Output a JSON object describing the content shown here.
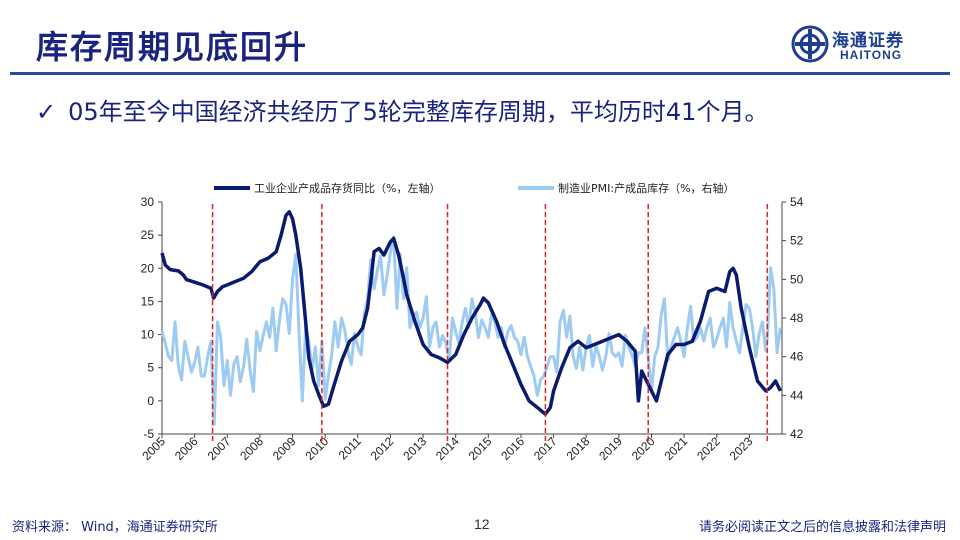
{
  "header": {
    "title": "库存周期见底回升",
    "logo_cn": "海通证券",
    "logo_en": "HAITONG"
  },
  "bullet": {
    "text": "05年至今中国经济共经历了5轮完整库存周期，平均历时41个月。"
  },
  "footer": {
    "source": "资料来源： Wind，海通证券研究所",
    "page": "12",
    "disclaimer": "请务必阅读正文之后的信息披露和法律声明"
  },
  "colors": {
    "title": "#1a237e",
    "series_left": "#0a1a6e",
    "series_right": "#9ecbf2",
    "cycle_lines": "#e02020"
  },
  "chart_data": {
    "type": "line",
    "legend": [
      "工业企业产成品存货同比（%，左轴）",
      "制造业PMI:产成品库存（%，右轴）"
    ],
    "legend_position": "top",
    "x_ticks": [
      "2005",
      "2006",
      "2007",
      "2008",
      "2009",
      "2010",
      "2011",
      "2012",
      "2013",
      "2014",
      "2015",
      "2016",
      "2017",
      "2018",
      "2019",
      "2020",
      "2021",
      "2022",
      "2023"
    ],
    "ylim_left": [
      -5,
      30
    ],
    "yticks_left": [
      -5,
      0,
      5,
      10,
      15,
      20,
      25,
      30
    ],
    "ylim_right": [
      42,
      54
    ],
    "yticks_right": [
      42,
      44,
      46,
      48,
      50,
      52,
      54
    ],
    "cycle_marks": [
      2006.55,
      2009.9,
      2013.75,
      2016.75,
      2019.9,
      2023.55
    ],
    "series": [
      {
        "name": "工业企业产成品存货同比（%，左轴）",
        "axis": "left",
        "points": [
          [
            2005.0,
            22.3
          ],
          [
            2005.1,
            20.5
          ],
          [
            2005.25,
            19.8
          ],
          [
            2005.5,
            19.6
          ],
          [
            2005.65,
            19.0
          ],
          [
            2005.75,
            18.3
          ],
          [
            2006.0,
            17.9
          ],
          [
            2006.25,
            17.5
          ],
          [
            2006.5,
            17.0
          ],
          [
            2006.58,
            15.5
          ],
          [
            2006.7,
            16.5
          ],
          [
            2006.85,
            17.2
          ],
          [
            2007.0,
            17.5
          ],
          [
            2007.25,
            18.0
          ],
          [
            2007.5,
            18.5
          ],
          [
            2007.75,
            19.5
          ],
          [
            2008.0,
            21.0
          ],
          [
            2008.25,
            21.5
          ],
          [
            2008.5,
            22.5
          ],
          [
            2008.65,
            25.0
          ],
          [
            2008.8,
            28.0
          ],
          [
            2008.9,
            28.5
          ],
          [
            2009.0,
            27.5
          ],
          [
            2009.1,
            25.0
          ],
          [
            2009.25,
            20.0
          ],
          [
            2009.4,
            12.0
          ],
          [
            2009.5,
            6.5
          ],
          [
            2009.65,
            3.0
          ],
          [
            2009.8,
            1.0
          ],
          [
            2009.95,
            -0.8
          ],
          [
            2010.1,
            -0.5
          ],
          [
            2010.25,
            2.0
          ],
          [
            2010.5,
            6.0
          ],
          [
            2010.75,
            9.0
          ],
          [
            2011.0,
            10.0
          ],
          [
            2011.15,
            11.0
          ],
          [
            2011.3,
            14.0
          ],
          [
            2011.4,
            18.0
          ],
          [
            2011.5,
            22.5
          ],
          [
            2011.65,
            23.0
          ],
          [
            2011.8,
            22.0
          ],
          [
            2012.0,
            24.0
          ],
          [
            2012.1,
            24.5
          ],
          [
            2012.25,
            22.0
          ],
          [
            2012.4,
            18.5
          ],
          [
            2012.5,
            16.0
          ],
          [
            2012.75,
            12.0
          ],
          [
            2013.0,
            8.5
          ],
          [
            2013.25,
            7.0
          ],
          [
            2013.5,
            6.5
          ],
          [
            2013.75,
            5.8
          ],
          [
            2014.0,
            7.0
          ],
          [
            2014.25,
            10.0
          ],
          [
            2014.5,
            12.5
          ],
          [
            2014.75,
            14.5
          ],
          [
            2014.85,
            15.5
          ],
          [
            2015.0,
            14.8
          ],
          [
            2015.25,
            12.0
          ],
          [
            2015.5,
            8.5
          ],
          [
            2015.75,
            5.5
          ],
          [
            2016.0,
            2.5
          ],
          [
            2016.25,
            0.0
          ],
          [
            2016.5,
            -1.0
          ],
          [
            2016.75,
            -2.0
          ],
          [
            2016.9,
            -1.0
          ],
          [
            2017.0,
            1.5
          ],
          [
            2017.25,
            5.0
          ],
          [
            2017.5,
            8.0
          ],
          [
            2017.75,
            9.0
          ],
          [
            2018.0,
            8.0
          ],
          [
            2018.25,
            8.5
          ],
          [
            2018.5,
            9.0
          ],
          [
            2018.75,
            9.5
          ],
          [
            2019.0,
            10.0
          ],
          [
            2019.25,
            9.0
          ],
          [
            2019.5,
            7.5
          ],
          [
            2019.6,
            0.0
          ],
          [
            2019.7,
            4.5
          ],
          [
            2019.85,
            3.0
          ],
          [
            2020.0,
            1.5
          ],
          [
            2020.15,
            0.0
          ],
          [
            2020.3,
            3.0
          ],
          [
            2020.5,
            7.0
          ],
          [
            2020.75,
            8.5
          ],
          [
            2021.0,
            8.5
          ],
          [
            2021.25,
            9.0
          ],
          [
            2021.5,
            12.0
          ],
          [
            2021.75,
            16.5
          ],
          [
            2022.0,
            17.0
          ],
          [
            2022.25,
            16.5
          ],
          [
            2022.4,
            19.5
          ],
          [
            2022.5,
            20.0
          ],
          [
            2022.6,
            19.0
          ],
          [
            2022.75,
            14.0
          ],
          [
            2023.0,
            8.0
          ],
          [
            2023.25,
            3.0
          ],
          [
            2023.5,
            1.5
          ],
          [
            2023.65,
            2.0
          ],
          [
            2023.8,
            3.0
          ],
          [
            2023.95,
            1.5
          ]
        ]
      },
      {
        "name": "制造业PMI:产成品库存（%，右轴）",
        "axis": "right",
        "points": [
          [
            2005.0,
            47.3
          ],
          [
            2005.1,
            46.7
          ],
          [
            2005.2,
            46.0
          ],
          [
            2005.3,
            45.8
          ],
          [
            2005.4,
            47.8
          ],
          [
            2005.5,
            45.5
          ],
          [
            2005.6,
            44.8
          ],
          [
            2005.7,
            46.8
          ],
          [
            2005.8,
            46.0
          ],
          [
            2005.9,
            45.2
          ],
          [
            2006.0,
            45.7
          ],
          [
            2006.1,
            46.5
          ],
          [
            2006.2,
            45.0
          ],
          [
            2006.3,
            45.0
          ],
          [
            2006.4,
            46.0
          ],
          [
            2006.5,
            46.8
          ],
          [
            2006.6,
            42.5
          ],
          [
            2006.7,
            47.8
          ],
          [
            2006.8,
            47.0
          ],
          [
            2006.9,
            44.5
          ],
          [
            2007.0,
            45.8
          ],
          [
            2007.1,
            44.0
          ],
          [
            2007.2,
            45.6
          ],
          [
            2007.3,
            46.0
          ],
          [
            2007.4,
            44.7
          ],
          [
            2007.5,
            45.5
          ],
          [
            2007.6,
            46.9
          ],
          [
            2007.7,
            45.3
          ],
          [
            2007.8,
            44.2
          ],
          [
            2007.9,
            47.3
          ],
          [
            2008.0,
            46.3
          ],
          [
            2008.1,
            47.1
          ],
          [
            2008.2,
            47.8
          ],
          [
            2008.3,
            47.0
          ],
          [
            2008.4,
            48.5
          ],
          [
            2008.5,
            46.3
          ],
          [
            2008.6,
            47.9
          ],
          [
            2008.7,
            49.0
          ],
          [
            2008.8,
            48.7
          ],
          [
            2008.9,
            47.2
          ],
          [
            2009.0,
            50.0
          ],
          [
            2009.1,
            51.3
          ],
          [
            2009.2,
            47.2
          ],
          [
            2009.3,
            43.7
          ],
          [
            2009.4,
            47.5
          ],
          [
            2009.5,
            46.8
          ],
          [
            2009.6,
            45.3
          ],
          [
            2009.7,
            46.5
          ],
          [
            2009.8,
            44.5
          ],
          [
            2009.9,
            46.8
          ],
          [
            2010.0,
            43.8
          ],
          [
            2010.1,
            45.0
          ],
          [
            2010.2,
            46.1
          ],
          [
            2010.3,
            47.8
          ],
          [
            2010.4,
            46.5
          ],
          [
            2010.5,
            48.0
          ],
          [
            2010.6,
            47.4
          ],
          [
            2010.7,
            46.3
          ],
          [
            2010.8,
            45.6
          ],
          [
            2010.9,
            47.2
          ],
          [
            2011.0,
            46.5
          ],
          [
            2011.1,
            46.1
          ],
          [
            2011.2,
            48.2
          ],
          [
            2011.3,
            49.0
          ],
          [
            2011.4,
            51.0
          ],
          [
            2011.5,
            49.5
          ],
          [
            2011.6,
            50.5
          ],
          [
            2011.7,
            51.2
          ],
          [
            2011.8,
            49.2
          ],
          [
            2011.9,
            50.2
          ],
          [
            2012.0,
            51.4
          ],
          [
            2012.1,
            52.2
          ],
          [
            2012.2,
            48.5
          ],
          [
            2012.3,
            51.3
          ],
          [
            2012.4,
            49.0
          ],
          [
            2012.5,
            50.6
          ],
          [
            2012.6,
            47.5
          ],
          [
            2012.7,
            48.1
          ],
          [
            2012.8,
            48.3
          ],
          [
            2012.9,
            47.5
          ],
          [
            2013.0,
            48.0
          ],
          [
            2013.1,
            49.1
          ],
          [
            2013.2,
            46.5
          ],
          [
            2013.3,
            47.5
          ],
          [
            2013.4,
            47.8
          ],
          [
            2013.5,
            46.5
          ],
          [
            2013.6,
            47.1
          ],
          [
            2013.7,
            46.7
          ],
          [
            2013.8,
            45.8
          ],
          [
            2013.9,
            48.0
          ],
          [
            2014.0,
            47.3
          ],
          [
            2014.1,
            46.7
          ],
          [
            2014.2,
            47.8
          ],
          [
            2014.3,
            48.5
          ],
          [
            2014.4,
            47.5
          ],
          [
            2014.5,
            49.0
          ],
          [
            2014.6,
            48.2
          ],
          [
            2014.7,
            47.0
          ],
          [
            2014.8,
            47.9
          ],
          [
            2014.9,
            47.5
          ],
          [
            2015.0,
            47.0
          ],
          [
            2015.1,
            48.2
          ],
          [
            2015.2,
            47.8
          ],
          [
            2015.3,
            47.0
          ],
          [
            2015.4,
            47.5
          ],
          [
            2015.5,
            46.5
          ],
          [
            2015.6,
            47.3
          ],
          [
            2015.7,
            47.6
          ],
          [
            2015.8,
            47.0
          ],
          [
            2015.9,
            46.8
          ],
          [
            2016.0,
            46.1
          ],
          [
            2016.1,
            47.0
          ],
          [
            2016.2,
            46.0
          ],
          [
            2016.3,
            45.5
          ],
          [
            2016.4,
            45.0
          ],
          [
            2016.5,
            44.0
          ],
          [
            2016.6,
            44.8
          ],
          [
            2016.7,
            45.0
          ],
          [
            2016.8,
            45.5
          ],
          [
            2016.9,
            46.0
          ],
          [
            2017.0,
            46.0
          ],
          [
            2017.1,
            45.2
          ],
          [
            2017.2,
            47.8
          ],
          [
            2017.3,
            48.4
          ],
          [
            2017.4,
            47.0
          ],
          [
            2017.5,
            48.1
          ],
          [
            2017.6,
            46.0
          ],
          [
            2017.7,
            45.4
          ],
          [
            2017.8,
            46.5
          ],
          [
            2017.9,
            45.3
          ],
          [
            2018.0,
            46.5
          ],
          [
            2018.1,
            47.1
          ],
          [
            2018.2,
            45.5
          ],
          [
            2018.3,
            46.6
          ],
          [
            2018.4,
            46.0
          ],
          [
            2018.5,
            45.3
          ],
          [
            2018.6,
            46.0
          ],
          [
            2018.7,
            47.2
          ],
          [
            2018.8,
            46.2
          ],
          [
            2018.9,
            46.0
          ],
          [
            2019.0,
            46.2
          ],
          [
            2019.1,
            45.5
          ],
          [
            2019.2,
            47.1
          ],
          [
            2019.3,
            46.5
          ],
          [
            2019.4,
            46.1
          ],
          [
            2019.5,
            45.5
          ],
          [
            2019.6,
            46.2
          ],
          [
            2019.7,
            46.2
          ],
          [
            2019.8,
            47.5
          ],
          [
            2019.9,
            46.0
          ],
          [
            2020.0,
            44.2
          ],
          [
            2020.1,
            46.0
          ],
          [
            2020.2,
            46.5
          ],
          [
            2020.3,
            48.2
          ],
          [
            2020.4,
            49.0
          ],
          [
            2020.5,
            45.8
          ],
          [
            2020.6,
            46.5
          ],
          [
            2020.7,
            47.0
          ],
          [
            2020.8,
            47.5
          ],
          [
            2020.9,
            46.8
          ],
          [
            2021.0,
            46.0
          ],
          [
            2021.1,
            47.5
          ],
          [
            2021.2,
            48.6
          ],
          [
            2021.3,
            46.8
          ],
          [
            2021.4,
            47.0
          ],
          [
            2021.5,
            47.5
          ],
          [
            2021.6,
            46.8
          ],
          [
            2021.7,
            47.5
          ],
          [
            2021.8,
            48.0
          ],
          [
            2021.9,
            46.5
          ],
          [
            2022.0,
            46.9
          ],
          [
            2022.1,
            47.5
          ],
          [
            2022.2,
            48.0
          ],
          [
            2022.3,
            46.5
          ],
          [
            2022.4,
            48.8
          ],
          [
            2022.5,
            47.5
          ],
          [
            2022.6,
            46.8
          ],
          [
            2022.7,
            46.2
          ],
          [
            2022.8,
            47.5
          ],
          [
            2022.9,
            48.7
          ],
          [
            2023.0,
            48.5
          ],
          [
            2023.1,
            47.5
          ],
          [
            2023.2,
            46.0
          ],
          [
            2023.3,
            47.2
          ],
          [
            2023.4,
            47.8
          ],
          [
            2023.5,
            46.3
          ],
          [
            2023.55,
            47.0
          ],
          [
            2023.65,
            50.6
          ],
          [
            2023.75,
            49.5
          ],
          [
            2023.85,
            46.2
          ],
          [
            2023.95,
            47.5
          ]
        ]
      }
    ]
  }
}
